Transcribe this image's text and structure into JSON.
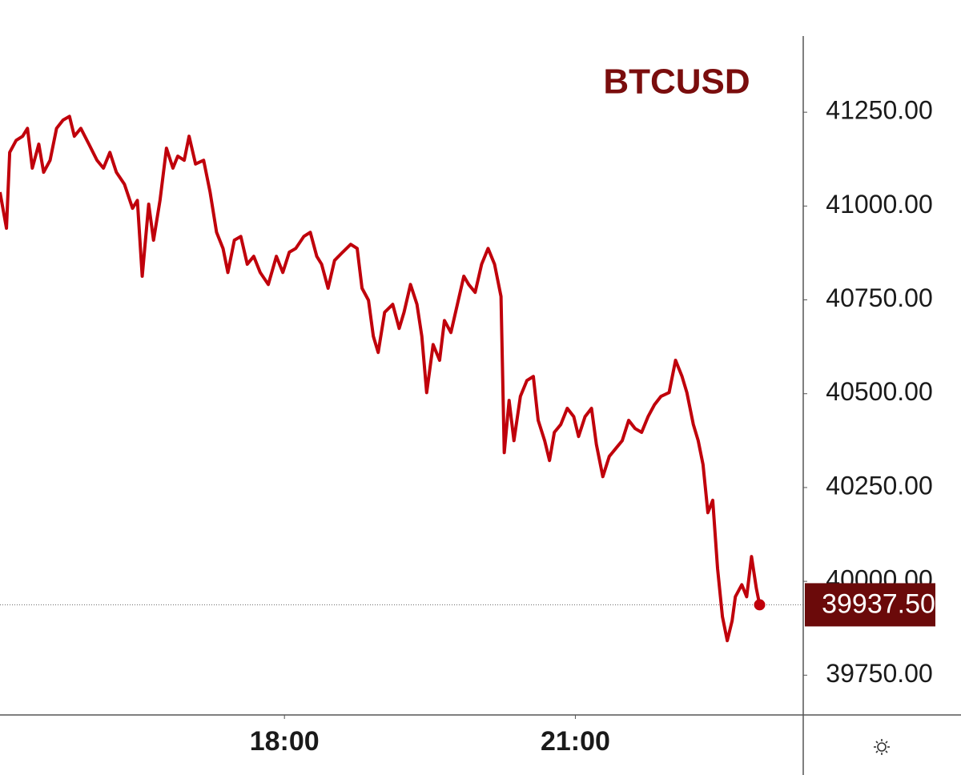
{
  "chart_data": {
    "type": "line",
    "title": "BTCUSD",
    "x": [
      "15:04",
      "15:08",
      "15:10",
      "15:14",
      "15:18",
      "15:21",
      "15:24",
      "15:28",
      "15:31",
      "15:35",
      "15:39",
      "15:43",
      "15:47",
      "15:50",
      "15:54",
      "15:59",
      "16:04",
      "16:08",
      "16:12",
      "16:16",
      "16:21",
      "16:26",
      "16:29",
      "16:32",
      "16:36",
      "16:39",
      "16:43",
      "16:47",
      "16:51",
      "16:54",
      "16:58",
      "17:01",
      "17:05",
      "17:10",
      "17:14",
      "17:18",
      "17:22",
      "17:25",
      "17:29",
      "17:33",
      "17:37",
      "17:41",
      "17:45",
      "17:50",
      "17:55",
      "17:59",
      "18:03",
      "18:07",
      "18:12",
      "18:16",
      "18:20",
      "18:23",
      "18:27",
      "18:31",
      "18:36",
      "18:41",
      "18:45",
      "18:48",
      "18:52",
      "18:55",
      "18:58",
      "19:02",
      "19:07",
      "19:11",
      "19:14",
      "19:18",
      "19:22",
      "19:25",
      "19:28",
      "19:32",
      "19:36",
      "19:39",
      "19:43",
      "19:47",
      "19:51",
      "19:54",
      "19:58",
      "20:02",
      "20:06",
      "20:10",
      "20:14",
      "20:16",
      "20:19",
      "20:22",
      "20:26",
      "20:30",
      "20:34",
      "20:37",
      "20:41",
      "20:44",
      "20:47",
      "20:51",
      "20:55",
      "20:59",
      "21:02",
      "21:06",
      "21:10",
      "21:13",
      "21:17",
      "21:21",
      "21:25",
      "21:29",
      "21:33",
      "21:37",
      "21:41",
      "21:45",
      "21:49",
      "21:53",
      "21:58",
      "22:02",
      "22:06",
      "22:09",
      "22:13",
      "22:16",
      "22:19",
      "22:22",
      "22:25",
      "22:28",
      "22:31",
      "22:34",
      "22:37",
      "22:39",
      "22:43",
      "22:46",
      "22:49",
      "22:52",
      "22:54"
    ],
    "series": [
      {
        "name": "BTCUSD",
        "color": "#c0000b",
        "values": [
          41037,
          40941,
          41143,
          41175,
          41186,
          41207,
          41101,
          41165,
          41090,
          41122,
          41207,
          41229,
          41239,
          41186,
          41207,
          41165,
          41122,
          41101,
          41143,
          41090,
          41058,
          40994,
          41015,
          40813,
          41005,
          40909,
          41015,
          41154,
          41101,
          41133,
          41122,
          41186,
          41112,
          41122,
          41037,
          40930,
          40887,
          40823,
          40909,
          40919,
          40845,
          40866,
          40823,
          40791,
          40866,
          40823,
          40877,
          40887,
          40919,
          40930,
          40866,
          40845,
          40781,
          40855,
          40877,
          40898,
          40887,
          40781,
          40749,
          40653,
          40610,
          40717,
          40738,
          40674,
          40717,
          40791,
          40738,
          40653,
          40503,
          40631,
          40589,
          40695,
          40663,
          40738,
          40813,
          40791,
          40770,
          40845,
          40887,
          40845,
          40759,
          40343,
          40482,
          40375,
          40493,
          40535,
          40546,
          40429,
          40375,
          40322,
          40397,
          40418,
          40461,
          40439,
          40386,
          40439,
          40461,
          40365,
          40279,
          40333,
          40354,
          40375,
          40429,
          40407,
          40397,
          40439,
          40471,
          40493,
          40503,
          40589,
          40546,
          40503,
          40418,
          40375,
          40311,
          40183,
          40216,
          40034,
          39906,
          39842,
          39895,
          39959,
          39991,
          39959,
          40066,
          39981,
          39937.5
        ]
      }
    ],
    "last_price": {
      "value": 39937.5,
      "label": "39937.50"
    },
    "xlim": [
      "15:04",
      "23:21"
    ],
    "xticks": [
      "18:00",
      "21:00"
    ],
    "ylim": [
      39644,
      41453
    ],
    "yticks": [
      {
        "value": 39750,
        "label": "39750.00"
      },
      {
        "value": 40000,
        "label": "40000.00"
      },
      {
        "value": 40250,
        "label": "40250.00"
      },
      {
        "value": 40500,
        "label": "40500.00"
      },
      {
        "value": 40750,
        "label": "40750.00"
      },
      {
        "value": 41000,
        "label": "41000.00"
      },
      {
        "value": 41250,
        "label": "41250.00"
      }
    ]
  }
}
